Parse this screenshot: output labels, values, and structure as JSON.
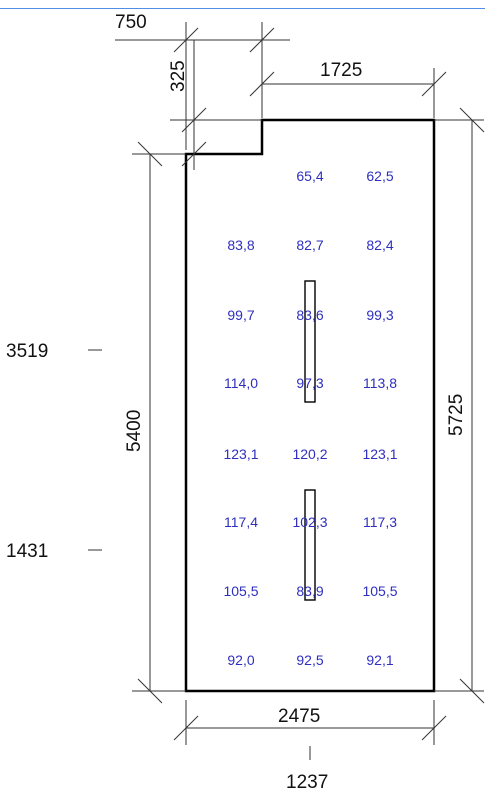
{
  "dimensions": {
    "notch_width": "750",
    "notch_depth": "325",
    "top_right_width": "1725",
    "left_height": "5400",
    "right_height": "5725",
    "bottom_width": "2475",
    "mark_upper": "3519",
    "mark_lower": "1431",
    "mark_bottom": "1237"
  },
  "grid_values": [
    [
      null,
      "65,4",
      "62,5"
    ],
    [
      "83,8",
      "82,7",
      "82,4"
    ],
    [
      "99,7",
      "83,6",
      "99,3"
    ],
    [
      "114,0",
      "97,3",
      "113,8"
    ],
    [
      "123,1",
      "120,2",
      "123,1"
    ],
    [
      "117,4",
      "102,3",
      "117,3"
    ],
    [
      "105,5",
      "83,9",
      "105,5"
    ],
    [
      "92,0",
      "92,5",
      "92,1"
    ]
  ],
  "colors": {
    "value_text": "#2f2fbf",
    "outline": "#000000",
    "top_rule": "#4f8ee8"
  }
}
